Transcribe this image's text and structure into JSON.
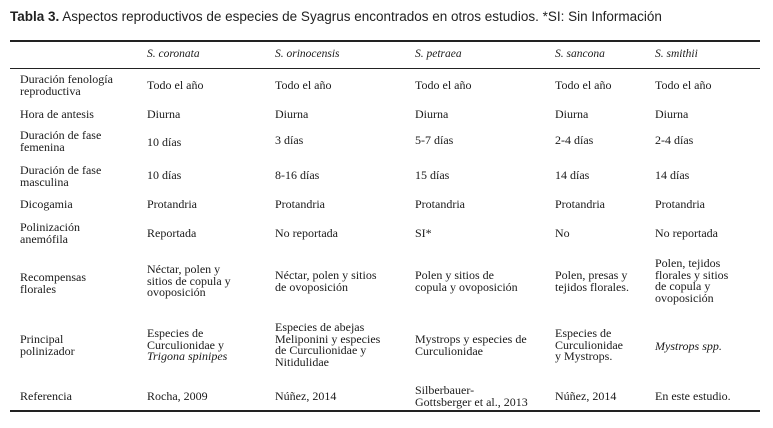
{
  "caption": {
    "number": "Tabla 3.",
    "text": "Aspectos reproductivos de especies de Syagrus encontrados en otros estudios. *SI: Sin Información"
  },
  "headers": [
    "S. coronata",
    "S. orinocensis",
    "S. petraea",
    "S. sancona",
    "S. smithii"
  ],
  "rows": [
    {
      "label": [
        "Duración fenología",
        "reproductiva"
      ],
      "cells": [
        [
          "Todo el año"
        ],
        [
          "Todo el año"
        ],
        [
          "Todo el año"
        ],
        [
          "Todo el año"
        ],
        [
          "Todo el año"
        ]
      ]
    },
    {
      "label": [
        "Hora de antesis"
      ],
      "cells": [
        [
          "Diurna"
        ],
        [
          "Diurna"
        ],
        [
          "Diurna"
        ],
        [
          "Diurna"
        ],
        [
          "Diurna"
        ]
      ]
    },
    {
      "label": [
        "Duración de fase",
        "femenina"
      ],
      "cells": [
        [
          "10 días"
        ],
        [
          "3 días"
        ],
        [
          "5-7 días"
        ],
        [
          "2-4 días"
        ],
        [
          "2-4 días"
        ]
      ]
    },
    {
      "label": [
        "Duración de fase",
        "masculina"
      ],
      "cells": [
        [
          "10 días"
        ],
        [
          "8-16 días"
        ],
        [
          "15 días"
        ],
        [
          "14 días"
        ],
        [
          "14 días"
        ]
      ]
    },
    {
      "label": [
        "Dicogamia"
      ],
      "cells": [
        [
          "Protandria"
        ],
        [
          "Protandria"
        ],
        [
          "Protandria"
        ],
        [
          "Protandria"
        ],
        [
          "Protandria"
        ]
      ]
    },
    {
      "label": [
        "Polinización",
        "anemófila"
      ],
      "cells": [
        [
          "Reportada"
        ],
        [
          "No reportada"
        ],
        [
          "SI*"
        ],
        [
          "No"
        ],
        [
          "No reportada"
        ]
      ]
    },
    {
      "label": [
        "Recompensas",
        "florales"
      ],
      "cells": [
        [
          "Néctar, polen y",
          "sitios de copula y",
          "ovoposición"
        ],
        [
          "Néctar, polen y sitios",
          "de ovoposición"
        ],
        [
          "Polen y sitios de",
          "copula y ovoposición"
        ],
        [
          "Polen, presas y",
          "tejidos florales."
        ],
        [
          "Polen, tejidos",
          "florales y sitios",
          "de copula y",
          "ovoposición"
        ]
      ]
    },
    {
      "label": [
        "Principal",
        "polinizador"
      ],
      "cells": [
        [
          "Especies de",
          "Curculionidae y",
          "Trigona spinipes"
        ],
        [
          "Especies de abejas",
          "Meliponini y especies",
          "de Curculionidae y",
          "Nitidulidae"
        ],
        [
          "Mystrops y especies de",
          "Curculionidae"
        ],
        [
          "Especies de",
          "Curculionidae",
          "y Mystrops."
        ],
        [
          "Mystrops spp."
        ]
      ]
    },
    {
      "label": [
        "Referencia"
      ],
      "cells": [
        [
          "Rocha, 2009"
        ],
        [
          "Núñez, 2014"
        ],
        [
          "Silberbauer-",
          "Gottsberger et al., 2013"
        ],
        [
          "Núñez, 2014"
        ],
        [
          "En este estudio."
        ]
      ]
    }
  ]
}
